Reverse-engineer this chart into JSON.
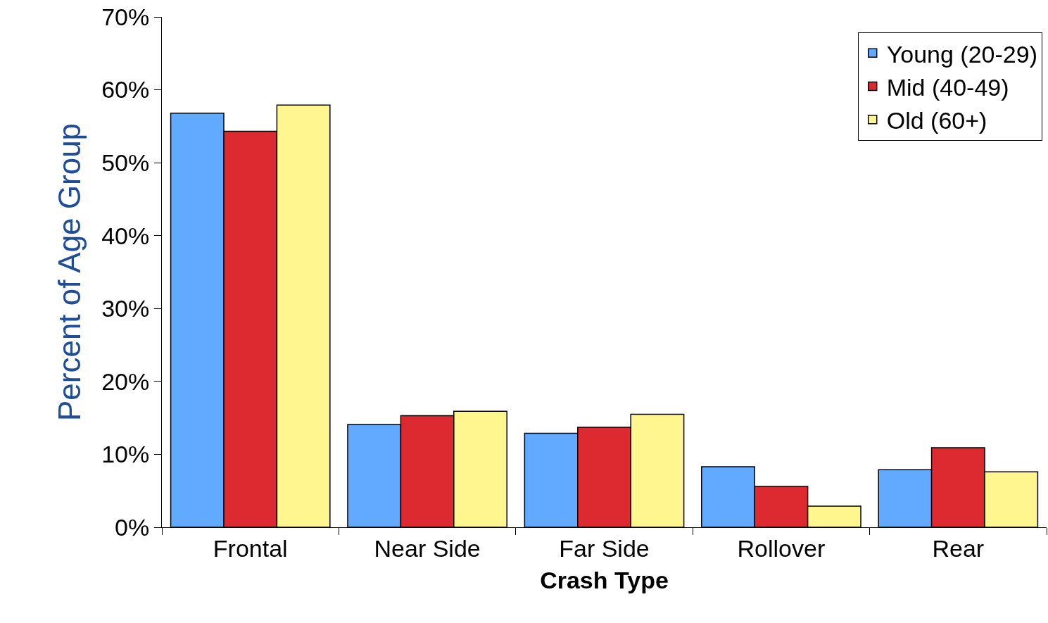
{
  "chart_data": {
    "type": "bar",
    "xlabel": "Crash Type",
    "ylabel": "Percent of Age Group",
    "categories": [
      "Frontal",
      "Near Side",
      "Far Side",
      "Rollover",
      "Rear"
    ],
    "series": [
      {
        "name": "Young (20-29)",
        "color": "#62aaff",
        "values": [
          56.8,
          14.1,
          12.9,
          8.3,
          7.9
        ]
      },
      {
        "name": "Mid (40-49)",
        "color": "#dc2a30",
        "values": [
          54.3,
          15.3,
          13.7,
          5.6,
          10.9
        ]
      },
      {
        "name": "Old (60+)",
        "color": "#fff68f",
        "values": [
          57.9,
          15.9,
          15.5,
          2.9,
          7.6
        ]
      }
    ],
    "ylim": [
      0,
      70
    ],
    "yticks": [
      {
        "value": 0,
        "label": "0%"
      },
      {
        "value": 10,
        "label": "10%"
      },
      {
        "value": 20,
        "label": "20%"
      },
      {
        "value": 30,
        "label": "30%"
      },
      {
        "value": 40,
        "label": "40%"
      },
      {
        "value": 50,
        "label": "50%"
      },
      {
        "value": 60,
        "label": "60%"
      },
      {
        "value": 70,
        "label": "70%"
      }
    ],
    "legend": "top right"
  }
}
